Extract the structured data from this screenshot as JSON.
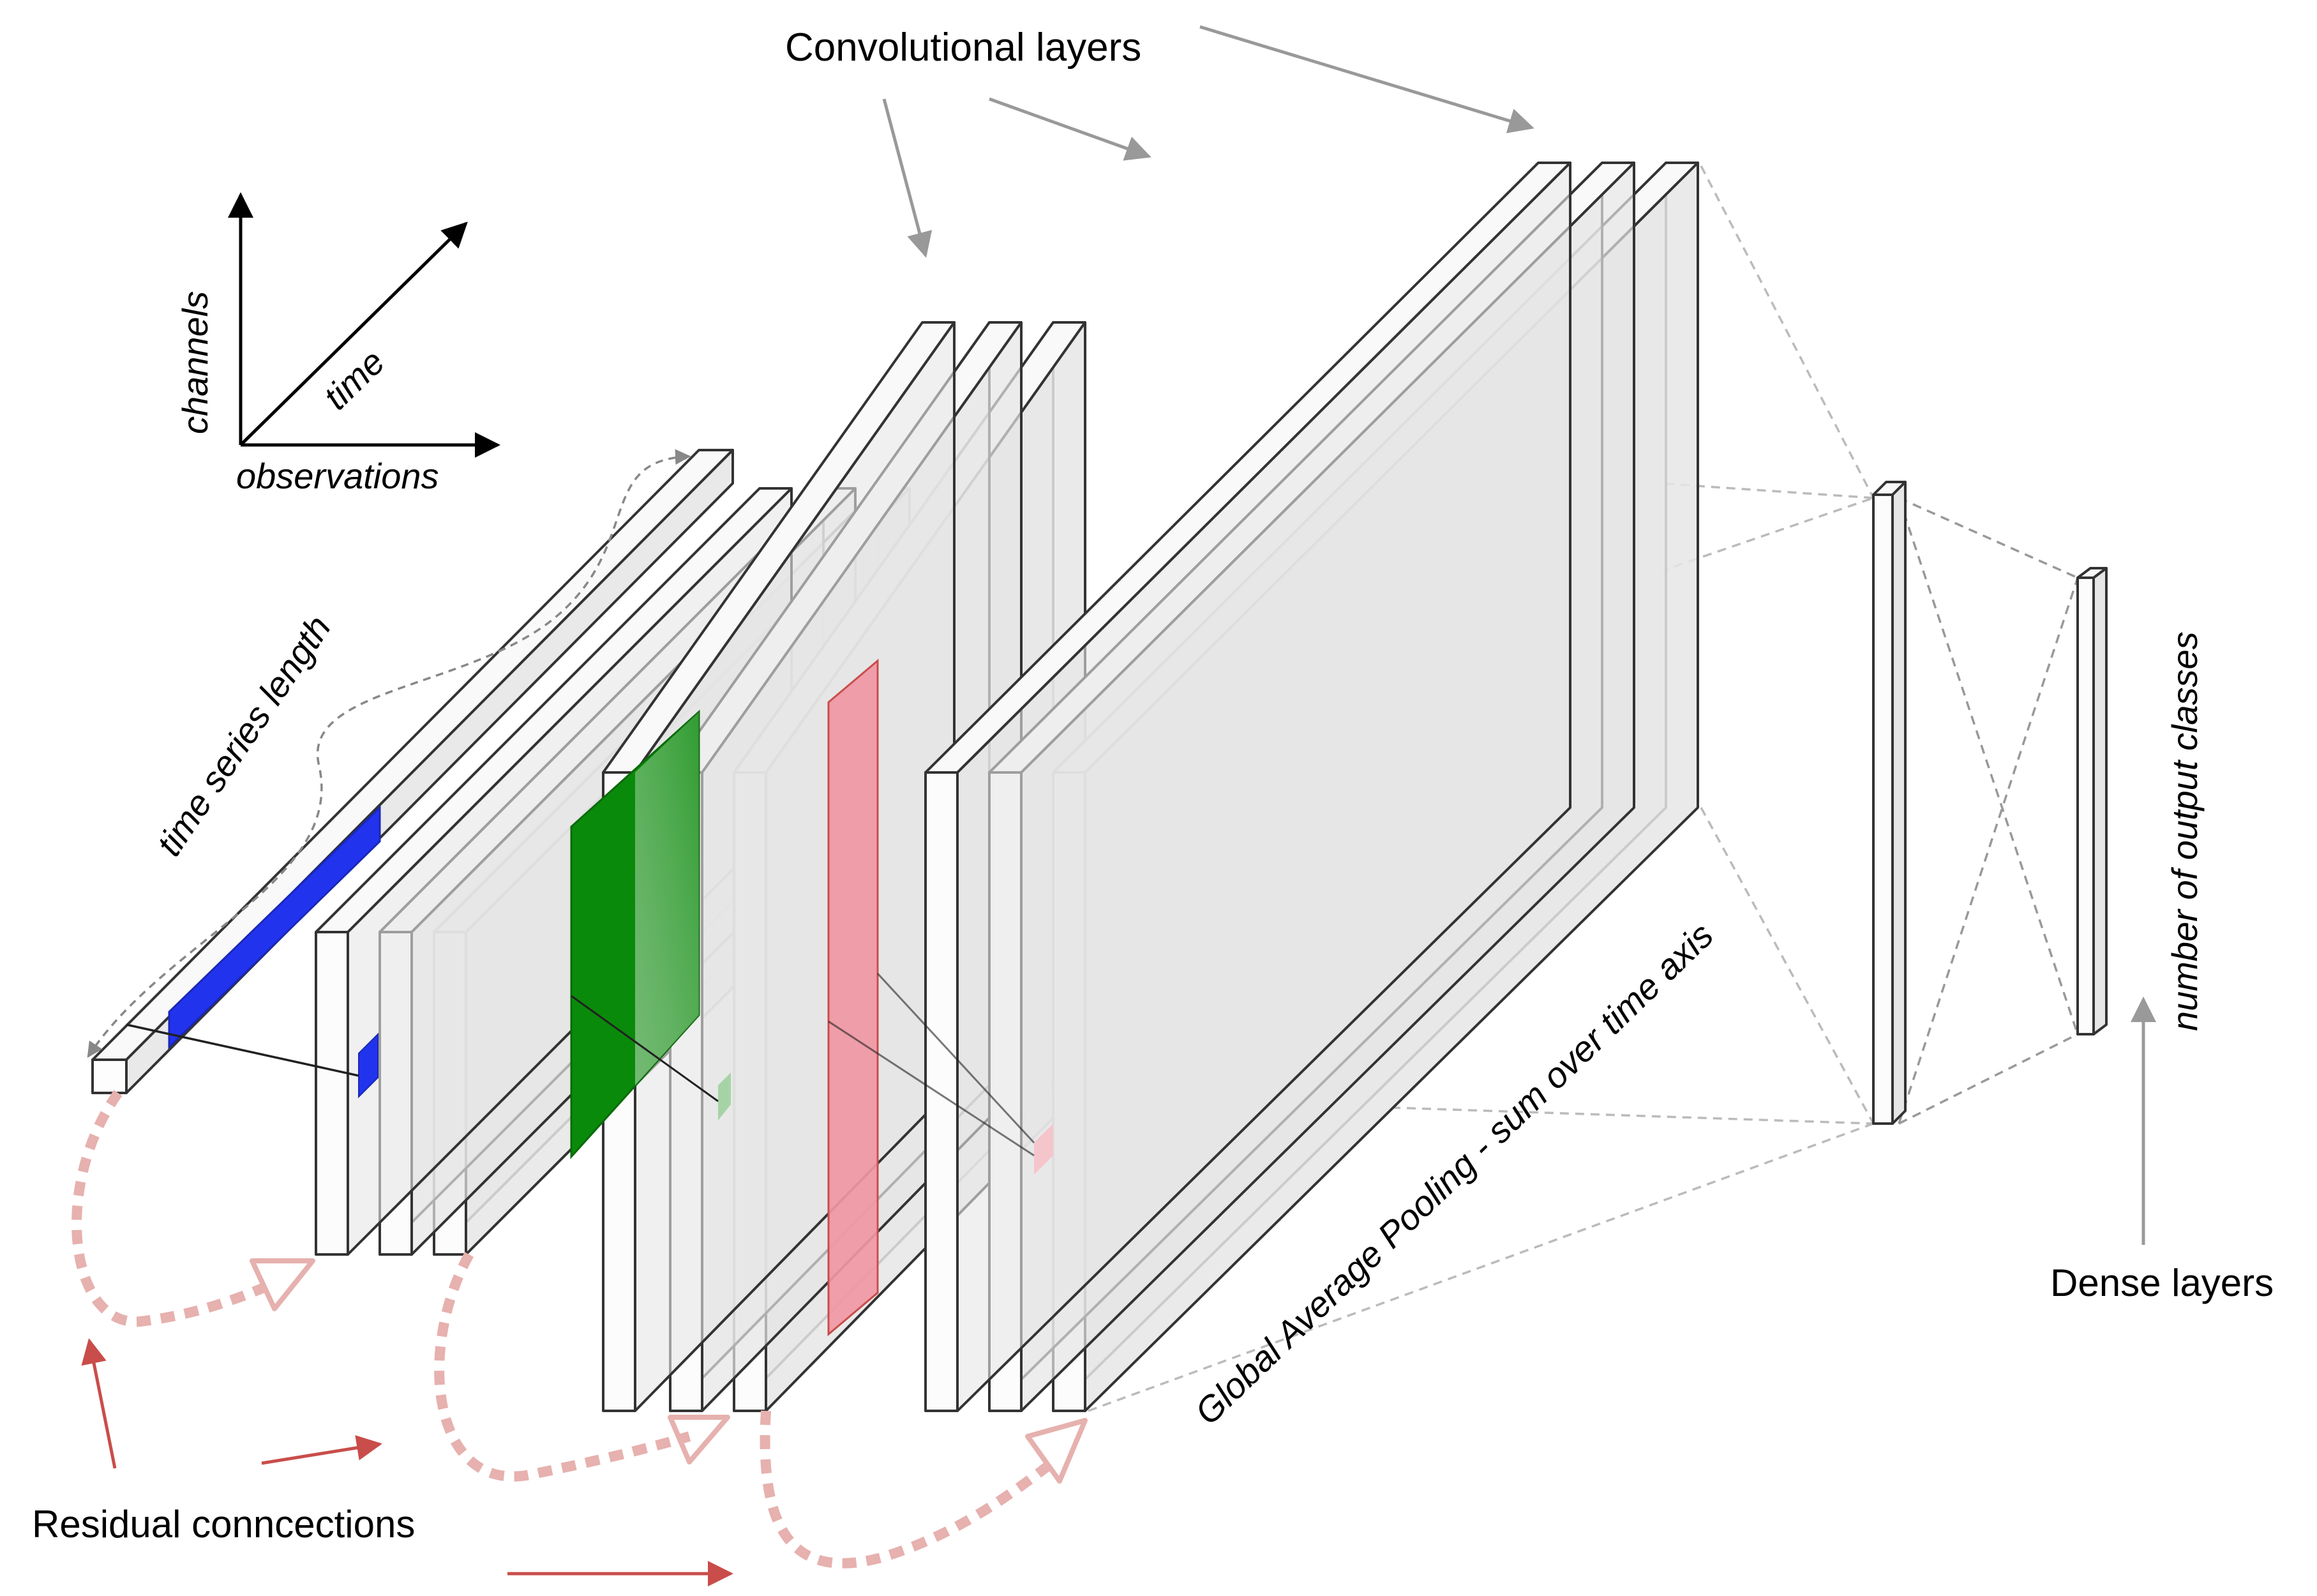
{
  "labels": {
    "convolutional_layers": "Convolutional layers",
    "channels": "channels",
    "time": "time",
    "observations": "observations",
    "time_series_length": "time series length",
    "global_average_pooling": "Global Average Pooling - sum over time axis",
    "number_of_output_classes": "number of output classes",
    "dense_layers": "Dense layers",
    "residual_connections": "Residual conncections"
  },
  "colors": {
    "block_face": "#f9f9f9",
    "block_side": "#e9e9e9",
    "block_stroke": "#333333",
    "blue_filter": "#2233ee",
    "green_filter": "#0a8a0a",
    "green_filter_light": "#a6d3a6",
    "red_filter": "#f097a4",
    "residual": "#e6b1ae",
    "residual_arrow": "#c94d4a",
    "callout_arrow": "#999999",
    "dashed_line": "#bbbbbb"
  }
}
